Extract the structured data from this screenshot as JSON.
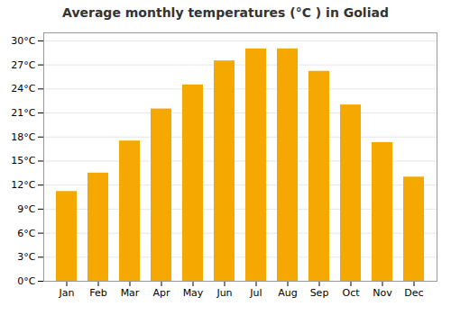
{
  "chart_data": {
    "type": "bar",
    "title": "Average monthly temperatures (°C ) in Goliad",
    "categories": [
      "Jan",
      "Feb",
      "Mar",
      "Apr",
      "May",
      "Jun",
      "Jul",
      "Aug",
      "Sep",
      "Oct",
      "Nov",
      "Dec"
    ],
    "values": [
      11.2,
      13.5,
      17.5,
      21.5,
      24.5,
      27.5,
      29.0,
      29.0,
      26.2,
      22.0,
      17.3,
      13.0
    ],
    "color": "#F5A800",
    "ylim": [
      0,
      31
    ],
    "yticks": [
      {
        "value": 0,
        "label": "0°C"
      },
      {
        "value": 3,
        "label": "3°C"
      },
      {
        "value": 6,
        "label": "6°C"
      },
      {
        "value": 9,
        "label": "9°C"
      },
      {
        "value": 12,
        "label": "12°C"
      },
      {
        "value": 15,
        "label": "15°C"
      },
      {
        "value": 18,
        "label": "18°C"
      },
      {
        "value": 21,
        "label": "21°C"
      },
      {
        "value": 24,
        "label": "24°C"
      },
      {
        "value": 27,
        "label": "27°C"
      },
      {
        "value": 30,
        "label": "30°C"
      }
    ],
    "grid": true
  }
}
